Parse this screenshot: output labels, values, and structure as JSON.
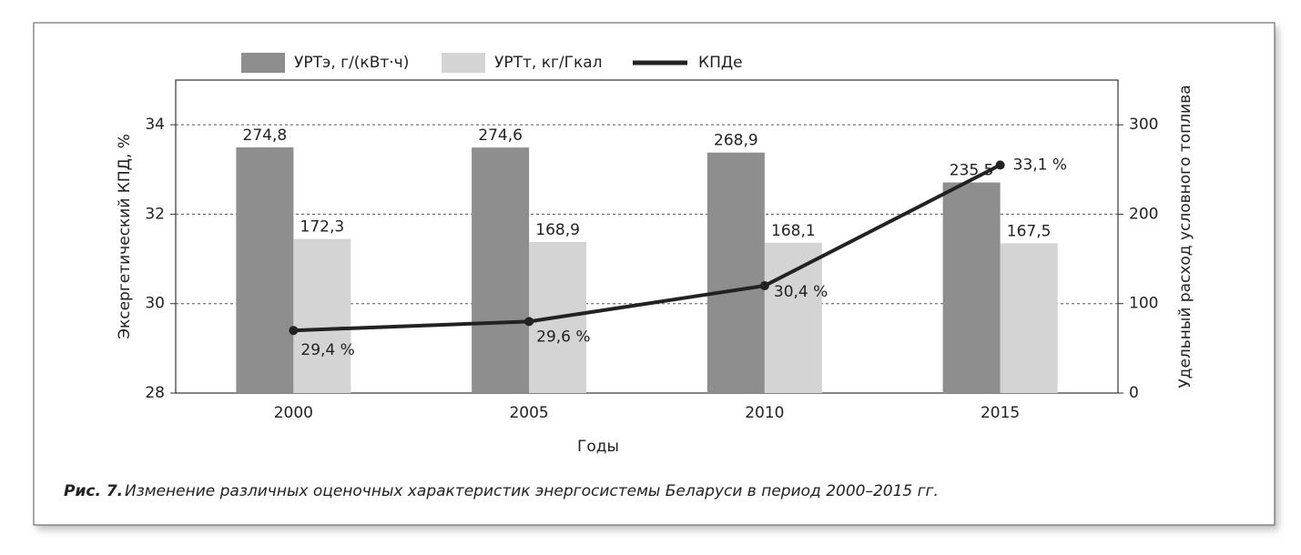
{
  "chart_data": {
    "type": "bar_line",
    "caption_label": "Рис. 7.",
    "caption": "Изменение различных оценочных характеристик энергосистемы Беларуси в период 2000–2015 гг.",
    "x_label": "Годы",
    "y_label": "Эксергетический КПД, %",
    "y2_label": "Удельный расход условного топлива",
    "categories": [
      "2000",
      "2005",
      "2010",
      "2015"
    ],
    "series": [
      {
        "name": "УРТэ, г/(кВт·ч)",
        "type": "bar",
        "axis": "y2",
        "color": "#8e8e8e",
        "values": [
          274.8,
          274.6,
          268.9,
          235.5
        ],
        "value_labels": [
          "274,8",
          "274,6",
          "268,9",
          "235,5"
        ]
      },
      {
        "name": "УРТт, кг/Гкал",
        "type": "bar",
        "axis": "y2",
        "color": "#d4d4d4",
        "values": [
          172.3,
          168.9,
          168.1,
          167.5
        ],
        "value_labels": [
          "172,3",
          "168,9",
          "168,1",
          "167,5"
        ]
      },
      {
        "name": "КПДе",
        "type": "line",
        "axis": "y",
        "color": "#222222",
        "values": [
          29.4,
          29.6,
          30.4,
          33.1
        ],
        "value_labels": [
          "29,4 %",
          "29,6 %",
          "30,4 %",
          "33,1 %"
        ]
      }
    ],
    "ylim": [
      28,
      35
    ],
    "yticks": [
      28,
      30,
      32,
      34
    ],
    "y2lim": [
      0,
      350
    ],
    "y2ticks": [
      0,
      100,
      200,
      300
    ],
    "grid": true,
    "legend": "top"
  }
}
